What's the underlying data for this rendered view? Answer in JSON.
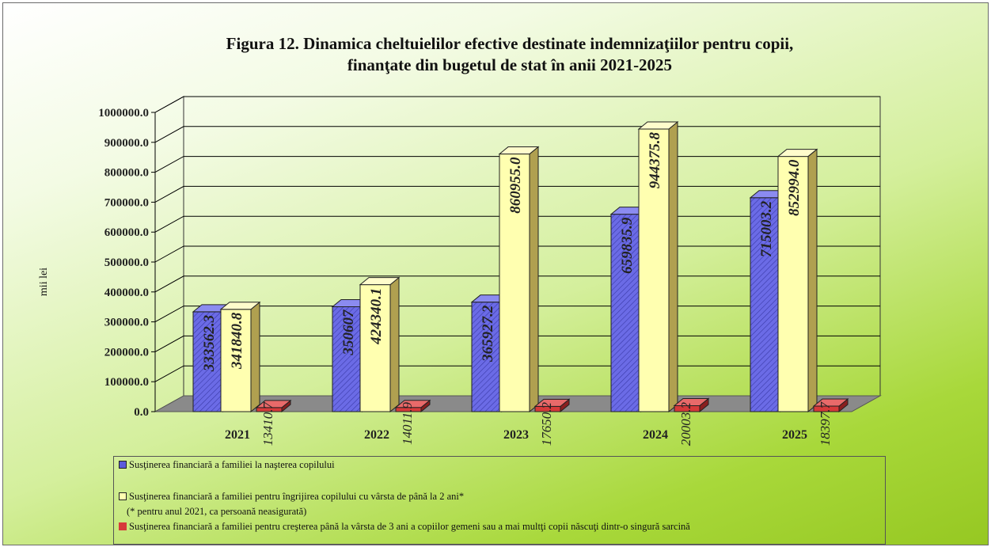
{
  "chart_data": {
    "type": "bar",
    "title": "Figura 12. Dinamica cheltuielilor  efective destinate indemnizaţiilor pentru copii, finanţate din bugetul de stat în anii 2021-2025",
    "title_lines": [
      "Figura 12. Dinamica cheltuielilor  efective destinate indemnizaţiilor pentru copii,",
      "finanţate din bugetul de stat în anii 2021-2025"
    ],
    "xlabel": "",
    "ylabel": "mii lei",
    "ylim": [
      0,
      1000000
    ],
    "yticks": [
      "0.0",
      "100000.0",
      "200000.0",
      "300000.0",
      "400000.0",
      "500000.0",
      "600000.0",
      "700000.0",
      "800000.0",
      "900000.0",
      "1000000.0"
    ],
    "categories": [
      "2021",
      "2022",
      "2023",
      "2024",
      "2025"
    ],
    "series": [
      {
        "name": "Susţinerea financiară a familiei  la naşterea copilului",
        "values": [
          333562.3,
          350607,
          365927.2,
          659835.9,
          715003.2
        ],
        "labels": [
          "333562.3",
          "350607",
          "365927.2",
          "659835.9",
          "715003.2"
        ],
        "color": "#5b5bdc"
      },
      {
        "name": "Susţinerea financiară a familiei pentru îngrijirea copilului cu vârsta de până la 2 ani*",
        "values": [
          341840.8,
          424340.1,
          860955.0,
          944375.8,
          852994.0
        ],
        "labels": [
          "341840.8",
          "424340.1",
          "860955.0",
          "944375.8",
          "852994.0"
        ],
        "color": "#ffffb0"
      },
      {
        "name": "Susţinerea financiară a familiei pentru creşterea până la vârsta de 3 ani a copiilor gemeni sau a mai multţi copii născuţi dintr-o singură sarcină",
        "values": [
          13410.7,
          14011.9,
          17650.2,
          20003.2,
          18397.7
        ],
        "labels": [
          "13410.7",
          "14011.9",
          "17650.2",
          "20003.2",
          "18397.7"
        ],
        "color": "#d63a3a"
      }
    ],
    "grid": true,
    "legend_position": "bottom",
    "legend_note": "(* pentru anul 2021, ca persoană neasigurată)"
  },
  "colors": {
    "series1": "#5b5bdc",
    "series2": "#ffffb0",
    "series3": "#d63a3a",
    "floor": "#8a8a8a"
  }
}
